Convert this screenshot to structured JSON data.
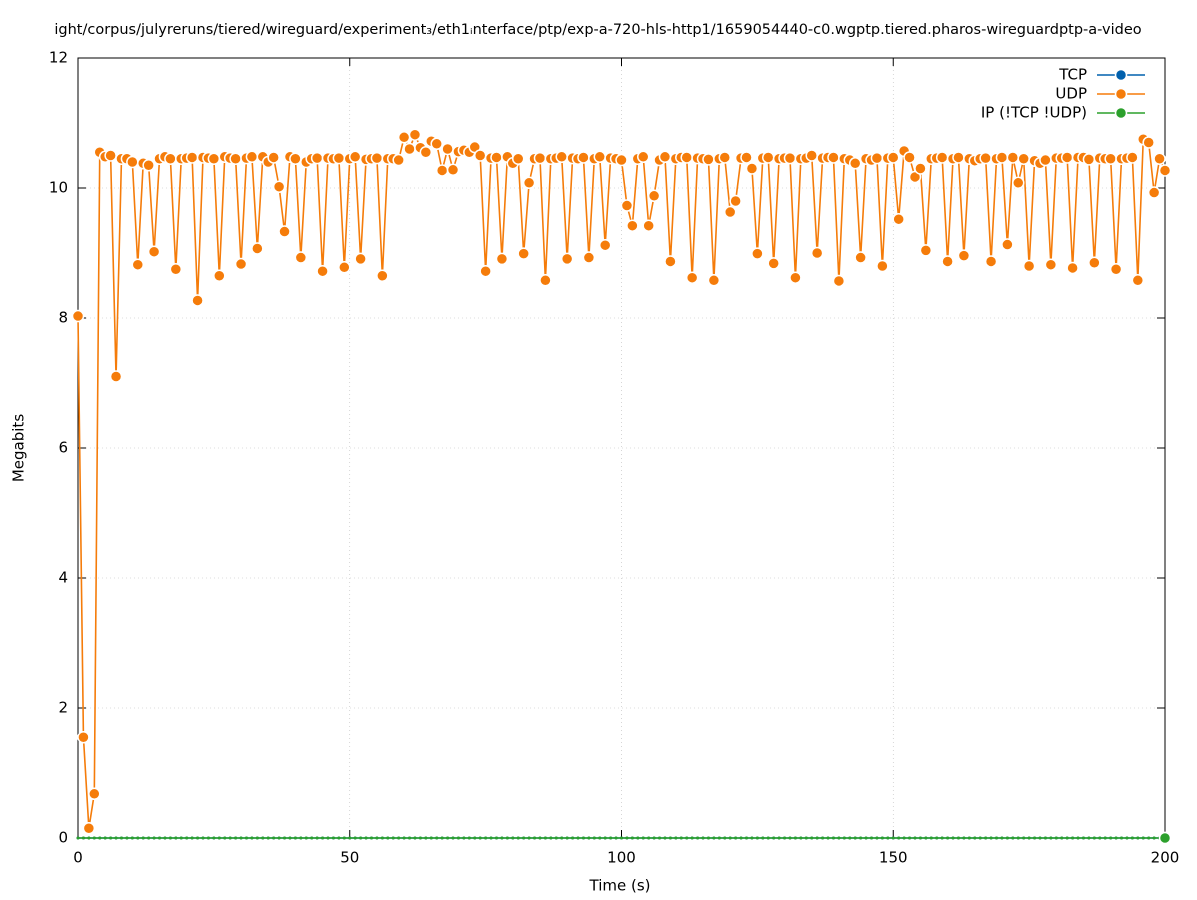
{
  "chart_data": {
    "type": "line",
    "title": "ight/corpus/julyreruns/tiered/wireguard/experiment₃/eth1ᵢnterface/ptp/exp-a-720-hls-http1/1659054440-c0.wgptp.tiered.pharos-wireguardptp-a-video",
    "x_label": "Time (s)",
    "y_label": "Megabits",
    "xlim": [
      0,
      200
    ],
    "xticks": [
      0,
      50,
      100,
      150,
      200
    ],
    "ylim": [
      0,
      12
    ],
    "yticks": [
      0,
      2,
      4,
      6,
      8,
      10,
      12
    ],
    "grid": true,
    "legend": "top-right",
    "x": [
      0,
      1,
      2,
      3,
      4,
      5,
      6,
      7,
      8,
      9,
      10,
      11,
      12,
      13,
      14,
      15,
      16,
      17,
      18,
      19,
      20,
      21,
      22,
      23,
      24,
      25,
      26,
      27,
      28,
      29,
      30,
      31,
      32,
      33,
      34,
      35,
      36,
      37,
      38,
      39,
      40,
      41,
      42,
      43,
      44,
      45,
      46,
      47,
      48,
      49,
      50,
      51,
      52,
      53,
      54,
      55,
      56,
      57,
      58,
      59,
      60,
      61,
      62,
      63,
      64,
      65,
      66,
      67,
      68,
      69,
      70,
      71,
      72,
      73,
      74,
      75,
      76,
      77,
      78,
      79,
      80,
      81,
      82,
      83,
      84,
      85,
      86,
      87,
      88,
      89,
      90,
      91,
      92,
      93,
      94,
      95,
      96,
      97,
      98,
      99,
      100,
      101,
      102,
      103,
      104,
      105,
      106,
      107,
      108,
      109,
      110,
      111,
      112,
      113,
      114,
      115,
      116,
      117,
      118,
      119,
      120,
      121,
      122,
      123,
      124,
      125,
      126,
      127,
      128,
      129,
      130,
      131,
      132,
      133,
      134,
      135,
      136,
      137,
      138,
      139,
      140,
      141,
      142,
      143,
      144,
      145,
      146,
      147,
      148,
      149,
      150,
      151,
      152,
      153,
      154,
      155,
      156,
      157,
      158,
      159,
      160,
      161,
      162,
      163,
      164,
      165,
      166,
      167,
      168,
      169,
      170,
      171,
      172,
      173,
      174,
      175,
      176,
      177,
      178,
      179,
      180,
      181,
      182,
      183,
      184,
      185,
      186,
      187,
      188,
      189,
      190,
      191,
      192,
      193,
      194,
      195,
      196,
      197,
      198,
      199,
      200
    ],
    "series": [
      {
        "name": "TCP",
        "color": "#0060ad",
        "values": [
          0,
          0,
          0,
          0,
          0,
          0,
          0,
          0,
          0,
          0,
          0,
          0,
          0,
          0,
          0,
          0,
          0,
          0,
          0,
          0,
          0,
          0,
          0,
          0,
          0,
          0,
          0,
          0,
          0,
          0,
          0,
          0,
          0,
          0,
          0,
          0,
          0,
          0,
          0,
          0,
          0,
          0,
          0,
          0,
          0,
          0,
          0,
          0,
          0,
          0,
          0,
          0,
          0,
          0,
          0,
          0,
          0,
          0,
          0,
          0,
          0,
          0,
          0,
          0,
          0,
          0,
          0,
          0,
          0,
          0,
          0,
          0,
          0,
          0,
          0,
          0,
          0,
          0,
          0,
          0,
          0,
          0,
          0,
          0,
          0,
          0,
          0,
          0,
          0,
          0,
          0,
          0,
          0,
          0,
          0,
          0,
          0,
          0,
          0,
          0,
          0,
          0,
          0,
          0,
          0,
          0,
          0,
          0,
          0,
          0,
          0,
          0,
          0,
          0,
          0,
          0,
          0,
          0,
          0,
          0,
          0,
          0,
          0,
          0,
          0,
          0,
          0,
          0,
          0,
          0,
          0,
          0,
          0,
          0,
          0,
          0,
          0,
          0,
          0,
          0,
          0,
          0,
          0,
          0,
          0,
          0,
          0,
          0,
          0,
          0,
          0,
          0,
          0,
          0,
          0,
          0,
          0,
          0,
          0,
          0,
          0,
          0,
          0,
          0,
          0,
          0,
          0,
          0,
          0,
          0,
          0,
          0,
          0,
          0,
          0,
          0,
          0,
          0,
          0,
          0,
          0,
          0,
          0,
          0,
          0,
          0,
          0,
          0,
          0,
          0,
          0,
          0,
          0,
          0,
          0,
          0,
          0,
          0,
          0,
          0,
          0
        ]
      },
      {
        "name": "UDP",
        "color": "#f57c0a",
        "values": [
          8.03,
          1.55,
          0.15,
          0.68,
          10.55,
          10.48,
          10.5,
          7.1,
          10.45,
          10.45,
          10.4,
          8.82,
          10.38,
          10.35,
          9.02,
          10.45,
          10.48,
          10.45,
          8.75,
          10.45,
          10.46,
          10.47,
          8.27,
          10.47,
          10.46,
          10.45,
          8.65,
          10.48,
          10.46,
          10.45,
          8.83,
          10.46,
          10.48,
          9.07,
          10.48,
          10.4,
          10.47,
          10.02,
          9.33,
          10.48,
          10.45,
          8.93,
          10.4,
          10.45,
          10.46,
          8.72,
          10.46,
          10.45,
          10.46,
          8.78,
          10.45,
          10.48,
          8.91,
          10.44,
          10.45,
          10.46,
          8.65,
          10.45,
          10.45,
          10.43,
          10.78,
          10.6,
          10.82,
          10.62,
          10.55,
          10.72,
          10.68,
          10.27,
          10.6,
          10.28,
          10.56,
          10.58,
          10.55,
          10.63,
          10.5,
          8.72,
          10.46,
          10.47,
          8.91,
          10.48,
          10.38,
          10.45,
          8.99,
          10.08,
          10.45,
          10.46,
          8.58,
          10.45,
          10.46,
          10.48,
          8.91,
          10.46,
          10.45,
          10.47,
          8.93,
          10.45,
          10.48,
          9.12,
          10.46,
          10.45,
          10.43,
          9.73,
          9.42,
          10.45,
          10.48,
          9.42,
          9.88,
          10.43,
          10.48,
          8.87,
          10.45,
          10.47,
          10.47,
          8.62,
          10.46,
          10.45,
          10.44,
          8.58,
          10.45,
          10.47,
          9.63,
          9.8,
          10.46,
          10.47,
          10.3,
          8.99,
          10.46,
          10.47,
          8.84,
          10.45,
          10.46,
          10.46,
          8.62,
          10.45,
          10.46,
          10.5,
          9.0,
          10.46,
          10.47,
          10.47,
          8.57,
          10.45,
          10.43,
          10.38,
          8.93,
          10.45,
          10.43,
          10.46,
          8.8,
          10.46,
          10.47,
          9.52,
          10.57,
          10.47,
          10.17,
          10.3,
          9.04,
          10.45,
          10.46,
          10.47,
          8.87,
          10.45,
          10.47,
          8.96,
          10.45,
          10.42,
          10.45,
          10.46,
          8.87,
          10.45,
          10.47,
          9.13,
          10.47,
          10.08,
          10.45,
          8.8,
          10.42,
          10.38,
          10.43,
          8.82,
          10.46,
          10.46,
          10.47,
          8.77,
          10.47,
          10.47,
          10.44,
          8.85,
          10.46,
          10.45,
          10.45,
          8.75,
          10.45,
          10.46,
          10.47,
          8.58,
          10.75,
          10.7,
          9.93,
          10.45,
          10.27
        ]
      },
      {
        "name": "IP (!TCP  !UDP)",
        "color": "#2ca02c",
        "values": [
          0,
          0,
          0,
          0,
          0,
          0,
          0,
          0,
          0,
          0,
          0,
          0,
          0,
          0,
          0,
          0,
          0,
          0,
          0,
          0,
          0,
          0,
          0,
          0,
          0,
          0,
          0,
          0,
          0,
          0,
          0,
          0,
          0,
          0,
          0,
          0,
          0,
          0,
          0,
          0,
          0,
          0,
          0,
          0,
          0,
          0,
          0,
          0,
          0,
          0,
          0,
          0,
          0,
          0,
          0,
          0,
          0,
          0,
          0,
          0,
          0,
          0,
          0,
          0,
          0,
          0,
          0,
          0,
          0,
          0,
          0,
          0,
          0,
          0,
          0,
          0,
          0,
          0,
          0,
          0,
          0,
          0,
          0,
          0,
          0,
          0,
          0,
          0,
          0,
          0,
          0,
          0,
          0,
          0,
          0,
          0,
          0,
          0,
          0,
          0,
          0,
          0,
          0,
          0,
          0,
          0,
          0,
          0,
          0,
          0,
          0,
          0,
          0,
          0,
          0,
          0,
          0,
          0,
          0,
          0,
          0,
          0,
          0,
          0,
          0,
          0,
          0,
          0,
          0,
          0,
          0,
          0,
          0,
          0,
          0,
          0,
          0,
          0,
          0,
          0,
          0,
          0,
          0,
          0,
          0,
          0,
          0,
          0,
          0,
          0,
          0,
          0,
          0,
          0,
          0,
          0,
          0,
          0,
          0,
          0,
          0,
          0,
          0,
          0,
          0,
          0,
          0,
          0,
          0,
          0,
          0,
          0,
          0,
          0,
          0,
          0,
          0,
          0,
          0,
          0,
          0,
          0,
          0,
          0,
          0,
          0,
          0,
          0,
          0,
          0,
          0,
          0,
          0,
          0,
          0,
          0,
          0,
          0,
          0,
          0,
          0
        ]
      }
    ]
  }
}
